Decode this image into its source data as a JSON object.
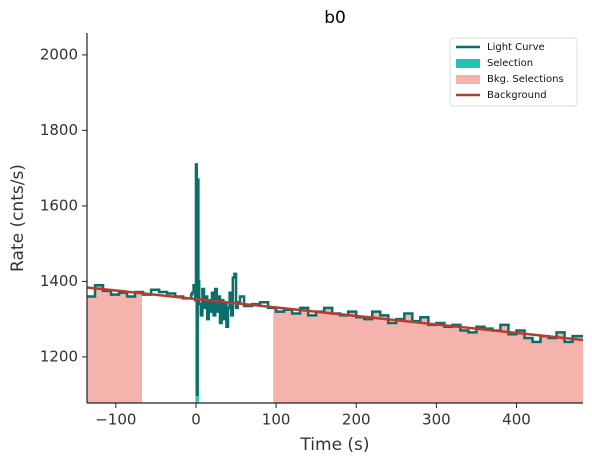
{
  "chart_data": {
    "type": "line",
    "title": "b0",
    "x_label": "Time (s)",
    "y_label": "Rate (cnts/s)",
    "xlim": [
      -136,
      483
    ],
    "ylim": [
      1078,
      2058
    ],
    "xticks": [
      {
        "value": -100,
        "label": "−100"
      },
      0,
      100,
      200,
      300,
      400
    ],
    "yticks": [
      1200,
      1400,
      1600,
      1800,
      2000
    ],
    "legend": "upper right",
    "series": [
      {
        "name": "Light Curve",
        "color": "#0b6e69",
        "style": "step",
        "x": [
          -136,
          -126,
          -116,
          -106,
          -96,
          -86,
          -76,
          -66,
          -56,
          -46,
          -36,
          -26,
          -16,
          -6,
          -5,
          -3,
          -1,
          0,
          1,
          2,
          3,
          4,
          6,
          8,
          10,
          12,
          14,
          16,
          18,
          20,
          22,
          24,
          26,
          28,
          30,
          32,
          34,
          36,
          38,
          40,
          42,
          44,
          46,
          48,
          50,
          52,
          55,
          60,
          70,
          80,
          90,
          100,
          110,
          120,
          130,
          140,
          150,
          160,
          170,
          180,
          190,
          200,
          210,
          220,
          230,
          240,
          250,
          260,
          270,
          280,
          290,
          300,
          310,
          320,
          330,
          340,
          350,
          360,
          370,
          380,
          390,
          400,
          410,
          420,
          430,
          440,
          450,
          460,
          470
        ],
        "values": [
          1360,
          1390,
          1375,
          1365,
          1370,
          1360,
          1372,
          1365,
          1378,
          1372,
          1368,
          1360,
          1355,
          1365,
          1370,
          1390,
          1350,
          1710,
          1100,
          1670,
          1400,
          1340,
          1310,
          1380,
          1330,
          1360,
          1300,
          1350,
          1320,
          1370,
          1310,
          1380,
          1320,
          1360,
          1290,
          1350,
          1300,
          1340,
          1280,
          1330,
          1370,
          1310,
          1410,
          1420,
          1330,
          1345,
          1360,
          1335,
          1340,
          1345,
          1330,
          1320,
          1325,
          1315,
          1330,
          1310,
          1320,
          1330,
          1315,
          1310,
          1320,
          1305,
          1300,
          1320,
          1310,
          1290,
          1300,
          1315,
          1295,
          1305,
          1285,
          1290,
          1280,
          1285,
          1270,
          1265,
          1280,
          1275,
          1270,
          1285,
          1260,
          1270,
          1250,
          1240,
          1255,
          1250,
          1265,
          1240,
          1255
        ]
      },
      {
        "name": "Background",
        "color": "#b83c2e",
        "style": "line",
        "x": [
          -136,
          483
        ],
        "values": [
          1384,
          1245
        ]
      }
    ],
    "regions": [
      {
        "name": "Selection",
        "color": "#21c3b3",
        "intervals": [
          [
            0,
            3
          ]
        ]
      },
      {
        "name": "Bkg. Selections",
        "color": "#f4b3ad",
        "intervals": [
          [
            -136,
            -68
          ],
          [
            97,
            483
          ]
        ]
      }
    ]
  }
}
